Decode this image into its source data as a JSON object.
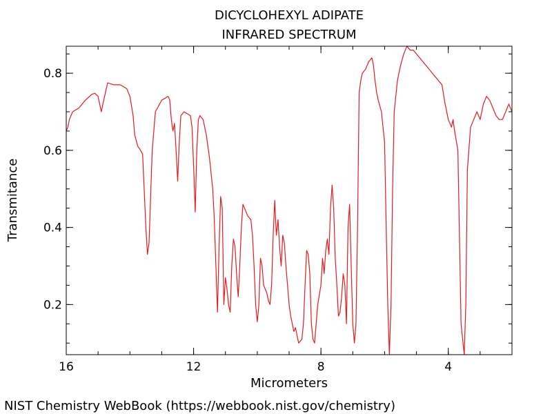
{
  "chart_data": {
    "type": "line",
    "title": "DICYCLOHEXYL ADIPATE",
    "subtitle": "INFRARED SPECTRUM",
    "xlabel": "Micrometers",
    "ylabel": "Transmitance",
    "xlim": [
      16,
      2
    ],
    "ylim": [
      0.07,
      0.87
    ],
    "x_ticks": [
      16,
      12,
      8,
      4
    ],
    "y_ticks": [
      0.2,
      0.4,
      0.6,
      0.8
    ],
    "x_minor_step": 1,
    "y_minor_step": 0.05,
    "grid": false,
    "series": [
      {
        "color": "#e41a1c",
        "points": [
          [
            16.0,
            0.65
          ],
          [
            15.95,
            0.66
          ],
          [
            15.9,
            0.68
          ],
          [
            15.8,
            0.7
          ],
          [
            15.6,
            0.71
          ],
          [
            15.4,
            0.73
          ],
          [
            15.2,
            0.745
          ],
          [
            15.1,
            0.748
          ],
          [
            15.0,
            0.74
          ],
          [
            14.9,
            0.7
          ],
          [
            14.85,
            0.72
          ],
          [
            14.7,
            0.775
          ],
          [
            14.5,
            0.77
          ],
          [
            14.3,
            0.77
          ],
          [
            14.1,
            0.76
          ],
          [
            14.0,
            0.74
          ],
          [
            13.9,
            0.69
          ],
          [
            13.85,
            0.64
          ],
          [
            13.75,
            0.61
          ],
          [
            13.7,
            0.605
          ],
          [
            13.6,
            0.59
          ],
          [
            13.5,
            0.4
          ],
          [
            13.45,
            0.33
          ],
          [
            13.4,
            0.36
          ],
          [
            13.3,
            0.6
          ],
          [
            13.2,
            0.7
          ],
          [
            13.0,
            0.73
          ],
          [
            12.8,
            0.74
          ],
          [
            12.75,
            0.73
          ],
          [
            12.7,
            0.68
          ],
          [
            12.65,
            0.65
          ],
          [
            12.6,
            0.67
          ],
          [
            12.55,
            0.6
          ],
          [
            12.5,
            0.52
          ],
          [
            12.45,
            0.62
          ],
          [
            12.4,
            0.69
          ],
          [
            12.3,
            0.7
          ],
          [
            12.1,
            0.69
          ],
          [
            12.05,
            0.66
          ],
          [
            12.0,
            0.56
          ],
          [
            11.95,
            0.44
          ],
          [
            11.9,
            0.6
          ],
          [
            11.85,
            0.68
          ],
          [
            11.8,
            0.69
          ],
          [
            11.7,
            0.68
          ],
          [
            11.6,
            0.64
          ],
          [
            11.5,
            0.58
          ],
          [
            11.4,
            0.5
          ],
          [
            11.35,
            0.42
          ],
          [
            11.3,
            0.3
          ],
          [
            11.25,
            0.18
          ],
          [
            11.2,
            0.35
          ],
          [
            11.15,
            0.48
          ],
          [
            11.1,
            0.45
          ],
          [
            11.05,
            0.2
          ],
          [
            11.0,
            0.27
          ],
          [
            10.95,
            0.24
          ],
          [
            10.9,
            0.2
          ],
          [
            10.85,
            0.18
          ],
          [
            10.8,
            0.3
          ],
          [
            10.75,
            0.37
          ],
          [
            10.7,
            0.35
          ],
          [
            10.65,
            0.28
          ],
          [
            10.6,
            0.22
          ],
          [
            10.55,
            0.3
          ],
          [
            10.5,
            0.4
          ],
          [
            10.45,
            0.46
          ],
          [
            10.4,
            0.45
          ],
          [
            10.3,
            0.43
          ],
          [
            10.2,
            0.42
          ],
          [
            10.15,
            0.38
          ],
          [
            10.1,
            0.3
          ],
          [
            10.05,
            0.2
          ],
          [
            10.0,
            0.155
          ],
          [
            9.95,
            0.2
          ],
          [
            9.9,
            0.32
          ],
          [
            9.85,
            0.3
          ],
          [
            9.8,
            0.25
          ],
          [
            9.75,
            0.24
          ],
          [
            9.7,
            0.23
          ],
          [
            9.65,
            0.21
          ],
          [
            9.6,
            0.2
          ],
          [
            9.55,
            0.25
          ],
          [
            9.5,
            0.38
          ],
          [
            9.45,
            0.47
          ],
          [
            9.4,
            0.38
          ],
          [
            9.35,
            0.42
          ],
          [
            9.3,
            0.35
          ],
          [
            9.25,
            0.3
          ],
          [
            9.2,
            0.38
          ],
          [
            9.15,
            0.36
          ],
          [
            9.1,
            0.3
          ],
          [
            9.05,
            0.25
          ],
          [
            9.0,
            0.2
          ],
          [
            8.95,
            0.17
          ],
          [
            8.9,
            0.15
          ],
          [
            8.85,
            0.13
          ],
          [
            8.8,
            0.14
          ],
          [
            8.75,
            0.12
          ],
          [
            8.7,
            0.1
          ],
          [
            8.6,
            0.11
          ],
          [
            8.55,
            0.15
          ],
          [
            8.5,
            0.25
          ],
          [
            8.45,
            0.34
          ],
          [
            8.4,
            0.33
          ],
          [
            8.35,
            0.28
          ],
          [
            8.3,
            0.15
          ],
          [
            8.25,
            0.11
          ],
          [
            8.2,
            0.1
          ],
          [
            8.15,
            0.15
          ],
          [
            8.1,
            0.2
          ],
          [
            8.0,
            0.25
          ],
          [
            7.95,
            0.32
          ],
          [
            7.9,
            0.28
          ],
          [
            7.85,
            0.34
          ],
          [
            7.8,
            0.37
          ],
          [
            7.75,
            0.33
          ],
          [
            7.7,
            0.45
          ],
          [
            7.65,
            0.51
          ],
          [
            7.6,
            0.45
          ],
          [
            7.55,
            0.32
          ],
          [
            7.5,
            0.25
          ],
          [
            7.45,
            0.17
          ],
          [
            7.4,
            0.18
          ],
          [
            7.35,
            0.22
          ],
          [
            7.3,
            0.28
          ],
          [
            7.25,
            0.25
          ],
          [
            7.2,
            0.15
          ],
          [
            7.15,
            0.4
          ],
          [
            7.1,
            0.46
          ],
          [
            7.05,
            0.3
          ],
          [
            7.0,
            0.15
          ],
          [
            6.95,
            0.1
          ],
          [
            6.9,
            0.15
          ],
          [
            6.85,
            0.4
          ],
          [
            6.8,
            0.75
          ],
          [
            6.75,
            0.78
          ],
          [
            6.7,
            0.8
          ],
          [
            6.6,
            0.81
          ],
          [
            6.5,
            0.83
          ],
          [
            6.4,
            0.84
          ],
          [
            6.35,
            0.82
          ],
          [
            6.3,
            0.78
          ],
          [
            6.25,
            0.75
          ],
          [
            6.2,
            0.73
          ],
          [
            6.1,
            0.7
          ],
          [
            6.0,
            0.62
          ],
          [
            5.95,
            0.4
          ],
          [
            5.9,
            0.2
          ],
          [
            5.85,
            0.07
          ],
          [
            5.8,
            0.2
          ],
          [
            5.75,
            0.5
          ],
          [
            5.7,
            0.7
          ],
          [
            5.6,
            0.78
          ],
          [
            5.5,
            0.82
          ],
          [
            5.4,
            0.85
          ],
          [
            5.3,
            0.87
          ],
          [
            5.2,
            0.86
          ],
          [
            5.1,
            0.86
          ],
          [
            5.0,
            0.85
          ],
          [
            4.9,
            0.84
          ],
          [
            4.8,
            0.83
          ],
          [
            4.7,
            0.82
          ],
          [
            4.6,
            0.81
          ],
          [
            4.5,
            0.8
          ],
          [
            4.4,
            0.79
          ],
          [
            4.3,
            0.78
          ],
          [
            4.2,
            0.77
          ],
          [
            4.1,
            0.72
          ],
          [
            4.0,
            0.68
          ],
          [
            3.95,
            0.67
          ],
          [
            3.9,
            0.66
          ],
          [
            3.85,
            0.68
          ],
          [
            3.8,
            0.65
          ],
          [
            3.7,
            0.6
          ],
          [
            3.6,
            0.15
          ],
          [
            3.5,
            0.07
          ],
          [
            3.45,
            0.2
          ],
          [
            3.4,
            0.55
          ],
          [
            3.3,
            0.66
          ],
          [
            3.2,
            0.68
          ],
          [
            3.1,
            0.7
          ],
          [
            3.0,
            0.68
          ],
          [
            2.9,
            0.72
          ],
          [
            2.8,
            0.74
          ],
          [
            2.7,
            0.73
          ],
          [
            2.6,
            0.71
          ],
          [
            2.5,
            0.69
          ],
          [
            2.4,
            0.68
          ],
          [
            2.3,
            0.68
          ],
          [
            2.2,
            0.7
          ],
          [
            2.1,
            0.72
          ],
          [
            2.0,
            0.7
          ]
        ]
      }
    ]
  },
  "footer": {
    "source": "NIST Chemistry WebBook (https://webbook.nist.gov/chemistry)"
  }
}
